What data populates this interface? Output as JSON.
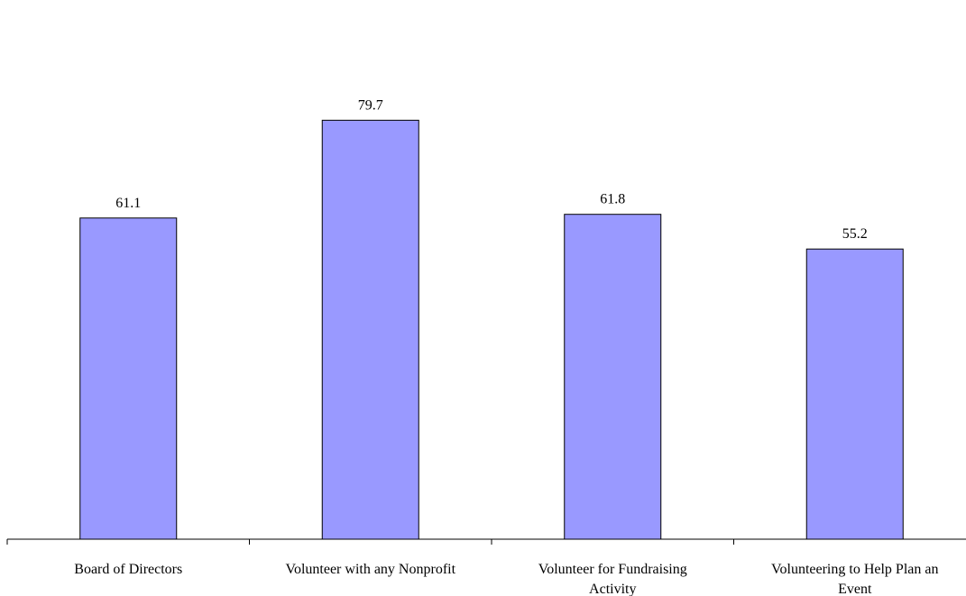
{
  "chart_data": {
    "type": "bar",
    "title": "",
    "xlabel": "",
    "ylabel": "",
    "ylim": [
      0,
      100
    ],
    "grid": false,
    "legend": "none",
    "data_labels": true,
    "categories": [
      [
        "Board of Directors"
      ],
      [
        "Volunteer with any Nonprofit"
      ],
      [
        "Volunteer for Fundraising",
        "Activity"
      ],
      [
        "Volunteering to Help Plan an",
        "Event"
      ]
    ],
    "values": [
      61.1,
      79.7,
      61.8,
      55.2
    ],
    "value_labels": [
      "61.1",
      "79.7",
      "61.8",
      "55.2"
    ],
    "bar_color": "#9999ff",
    "bar_outline_color": "#000000"
  }
}
